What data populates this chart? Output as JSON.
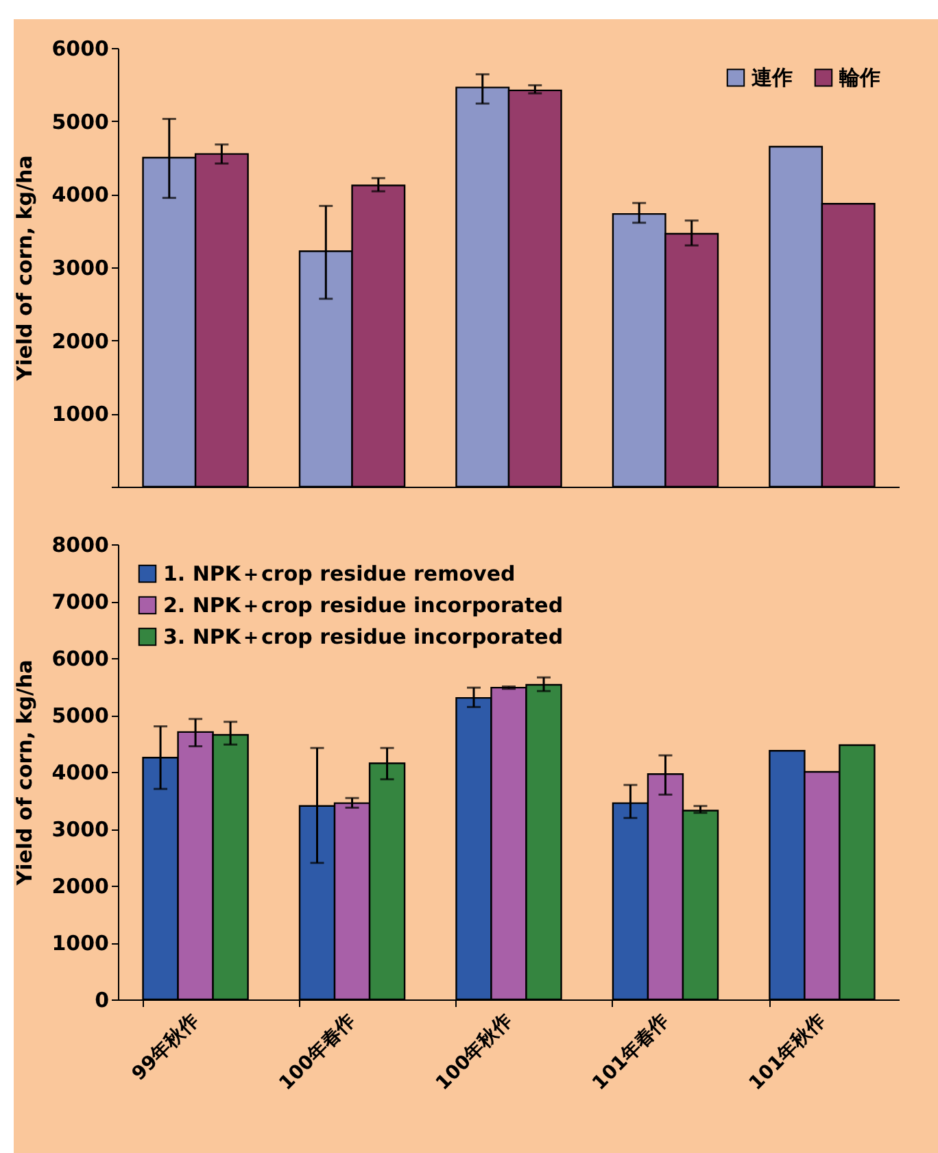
{
  "chart_data": [
    {
      "type": "bar",
      "categories": [
        null,
        null,
        null,
        null,
        null
      ],
      "ylabel": "Yield of corn, kg/ha",
      "ylim": [
        0,
        6000
      ],
      "yticks": [
        {
          "value": 0,
          "label": null
        },
        1000,
        2000,
        3000,
        4000,
        5000,
        6000
      ],
      "legend": "top right",
      "grid": false,
      "series": [
        {
          "name": "連作",
          "color": "#8c96c8",
          "values": [
            4500,
            3220,
            5460,
            3730,
            4650
          ],
          "errors": [
            [
              3950,
              5030
            ],
            [
              2570,
              3840
            ],
            [
              5240,
              5640
            ],
            [
              3610,
              3880
            ],
            null
          ]
        },
        {
          "name": "輪作",
          "color": "#963c6a",
          "values": [
            4550,
            4120,
            5420,
            3460,
            3870
          ],
          "errors": [
            [
              4420,
              4680
            ],
            [
              4040,
              4220
            ],
            [
              5380,
              5490
            ],
            [
              3300,
              3640
            ],
            null
          ]
        }
      ]
    },
    {
      "type": "bar",
      "categories": [
        "99年秋作",
        "100年春作",
        "100年秋作",
        "101年春作",
        "101年秋作"
      ],
      "ylabel": "Yield of corn, kg/ha",
      "ylim": [
        0,
        8000
      ],
      "yticks": [
        0,
        1000,
        2000,
        3000,
        4000,
        5000,
        6000,
        7000,
        8000
      ],
      "legend": "top left",
      "grid": false,
      "series": [
        {
          "name": "1. NPK＋crop residue removed",
          "color": "#2e5aa8",
          "values": [
            4250,
            3400,
            5300,
            3450,
            4370
          ],
          "errors": [
            [
              3700,
              4800
            ],
            [
              2400,
              4420
            ],
            [
              5140,
              5480
            ],
            [
              3190,
              3770
            ],
            null
          ]
        },
        {
          "name": "2. NPK＋crop residue incorporated",
          "color": "#a860a8",
          "values": [
            4700,
            3450,
            5480,
            3960,
            4000
          ],
          "errors": [
            [
              4450,
              4930
            ],
            [
              3370,
              3540
            ],
            [
              5460,
              5500
            ],
            [
              3600,
              4290
            ],
            null
          ]
        },
        {
          "name": "3. NPK＋crop residue incorporated",
          "color": "#358540",
          "values": [
            4650,
            4150,
            5530,
            3320,
            4470
          ],
          "errors": [
            [
              4480,
              4880
            ],
            [
              3870,
              4420
            ],
            [
              5420,
              5660
            ],
            [
              3280,
              3400
            ],
            null
          ]
        }
      ]
    }
  ]
}
